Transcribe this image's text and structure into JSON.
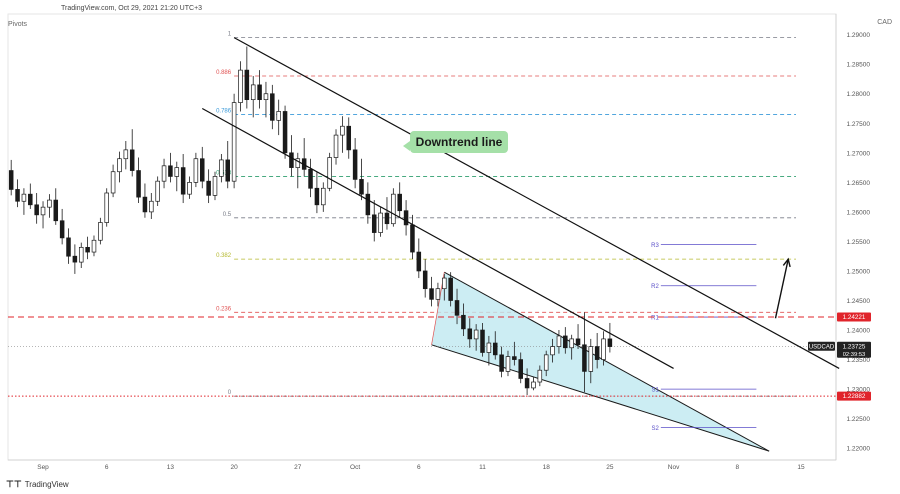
{
  "header": {
    "source": "TradingView.com, Oct 29, 2021 21:20 UTC+3",
    "indicator": "Pivots",
    "currency": "CAD",
    "footer_logo": "TradingView"
  },
  "annotation": {
    "text": "Downtrend line"
  },
  "chart_data": {
    "type": "candlestick",
    "symbol": "USDCAD",
    "last_price": 1.23725,
    "countdown": "02:39:53",
    "price_axis": {
      "ylim": [
        1.218,
        1.2935
      ],
      "ticks": [
        1.29,
        1.285,
        1.28,
        1.275,
        1.27,
        1.265,
        1.26,
        1.255,
        1.25,
        1.245,
        1.24,
        1.235,
        1.23,
        1.225,
        1.22
      ],
      "tick_labels": [
        "1.29000",
        "1.28500",
        "1.28000",
        "1.27500",
        "1.27000",
        "1.26500",
        "1.26000",
        "1.25500",
        "1.25000",
        "1.24500",
        "1.24000",
        "1.23500",
        "1.23000",
        "1.22500",
        "1.22000"
      ]
    },
    "time_axis": {
      "ticks": [
        {
          "label": "Sep",
          "bar": 5
        },
        {
          "label": "6",
          "bar": 15
        },
        {
          "label": "13",
          "bar": 25
        },
        {
          "label": "20",
          "bar": 35
        },
        {
          "label": "27",
          "bar": 45
        },
        {
          "label": "Oct",
          "bar": 54
        },
        {
          "label": "6",
          "bar": 64
        },
        {
          "label": "11",
          "bar": 74
        },
        {
          "label": "18",
          "bar": 84
        },
        {
          "label": "25",
          "bar": 94
        },
        {
          "label": "Nov",
          "bar": 104
        },
        {
          "label": "8",
          "bar": 114
        },
        {
          "label": "15",
          "bar": 124
        }
      ],
      "bars_total": 130
    },
    "ohlc": [
      [
        1.267,
        1.2688,
        1.2628,
        1.2638
      ],
      [
        1.2638,
        1.2655,
        1.2608,
        1.2618
      ],
      [
        1.2618,
        1.264,
        1.2595,
        1.263
      ],
      [
        1.263,
        1.2648,
        1.2605,
        1.2612
      ],
      [
        1.2612,
        1.2632,
        1.258,
        1.2595
      ],
      [
        1.2595,
        1.2618,
        1.2572,
        1.2608
      ],
      [
        1.2608,
        1.263,
        1.259,
        1.262
      ],
      [
        1.262,
        1.264,
        1.2578,
        1.2585
      ],
      [
        1.2585,
        1.2605,
        1.2545,
        1.2556
      ],
      [
        1.2556,
        1.2572,
        1.2512,
        1.2525
      ],
      [
        1.2525,
        1.2545,
        1.2495,
        1.2515
      ],
      [
        1.2515,
        1.2548,
        1.2505,
        1.254
      ],
      [
        1.254,
        1.2558,
        1.252,
        1.2532
      ],
      [
        1.2532,
        1.256,
        1.2525,
        1.2552
      ],
      [
        1.2552,
        1.259,
        1.2545,
        1.2582
      ],
      [
        1.2582,
        1.264,
        1.2575,
        1.2632
      ],
      [
        1.2632,
        1.268,
        1.2625,
        1.2668
      ],
      [
        1.2668,
        1.2702,
        1.265,
        1.269
      ],
      [
        1.269,
        1.272,
        1.2672,
        1.2705
      ],
      [
        1.2705,
        1.274,
        1.266,
        1.267
      ],
      [
        1.267,
        1.2692,
        1.2615,
        1.2625
      ],
      [
        1.2625,
        1.2648,
        1.259,
        1.26
      ],
      [
        1.26,
        1.2632,
        1.2588,
        1.2618
      ],
      [
        1.2618,
        1.266,
        1.261,
        1.2652
      ],
      [
        1.2652,
        1.269,
        1.264,
        1.2678
      ],
      [
        1.2678,
        1.27,
        1.265,
        1.266
      ],
      [
        1.266,
        1.2685,
        1.2635,
        1.2675
      ],
      [
        1.2675,
        1.2698,
        1.2615,
        1.263
      ],
      [
        1.263,
        1.266,
        1.2622,
        1.265
      ],
      [
        1.265,
        1.27,
        1.2642,
        1.269
      ],
      [
        1.269,
        1.271,
        1.264,
        1.2652
      ],
      [
        1.2652,
        1.2672,
        1.2615,
        1.2628
      ],
      [
        1.2628,
        1.2668,
        1.262,
        1.266
      ],
      [
        1.266,
        1.2698,
        1.265,
        1.2688
      ],
      [
        1.2688,
        1.272,
        1.264,
        1.2652
      ],
      [
        1.2652,
        1.28,
        1.264,
        1.2785
      ],
      [
        1.2785,
        1.2855,
        1.277,
        1.284
      ],
      [
        1.284,
        1.288,
        1.2775,
        1.279
      ],
      [
        1.279,
        1.283,
        1.276,
        1.2815
      ],
      [
        1.2815,
        1.284,
        1.2775,
        1.279
      ],
      [
        1.279,
        1.282,
        1.276,
        1.28
      ],
      [
        1.28,
        1.2815,
        1.274,
        1.2755
      ],
      [
        1.2755,
        1.279,
        1.273,
        1.277
      ],
      [
        1.277,
        1.278,
        1.269,
        1.27
      ],
      [
        1.27,
        1.273,
        1.266,
        1.2675
      ],
      [
        1.2675,
        1.27,
        1.264,
        1.269
      ],
      [
        1.269,
        1.2725,
        1.266,
        1.2672
      ],
      [
        1.2672,
        1.269,
        1.2625,
        1.264
      ],
      [
        1.264,
        1.2668,
        1.2598,
        1.2612
      ],
      [
        1.2612,
        1.265,
        1.26,
        1.264
      ],
      [
        1.264,
        1.27,
        1.2635,
        1.2692
      ],
      [
        1.2692,
        1.274,
        1.268,
        1.273
      ],
      [
        1.273,
        1.2762,
        1.27,
        1.2745
      ],
      [
        1.2745,
        1.276,
        1.269,
        1.2705
      ],
      [
        1.2705,
        1.2725,
        1.264,
        1.2655
      ],
      [
        1.2655,
        1.269,
        1.262,
        1.263
      ],
      [
        1.263,
        1.265,
        1.258,
        1.2595
      ],
      [
        1.2595,
        1.262,
        1.255,
        1.2565
      ],
      [
        1.2565,
        1.2608,
        1.2558,
        1.2598
      ],
      [
        1.2598,
        1.2625,
        1.257,
        1.258
      ],
      [
        1.258,
        1.264,
        1.2575,
        1.263
      ],
      [
        1.263,
        1.265,
        1.259,
        1.2602
      ],
      [
        1.2602,
        1.262,
        1.256,
        1.2578
      ],
      [
        1.2578,
        1.2595,
        1.252,
        1.2532
      ],
      [
        1.2532,
        1.2555,
        1.2488,
        1.25
      ],
      [
        1.25,
        1.252,
        1.2455,
        1.247
      ],
      [
        1.247,
        1.249,
        1.244,
        1.2452
      ],
      [
        1.2452,
        1.248,
        1.244,
        1.247
      ],
      [
        1.247,
        1.2495,
        1.245,
        1.2488
      ],
      [
        1.2488,
        1.2498,
        1.244,
        1.245
      ],
      [
        1.245,
        1.247,
        1.241,
        1.2425
      ],
      [
        1.2425,
        1.2445,
        1.239,
        1.2402
      ],
      [
        1.2402,
        1.242,
        1.237,
        1.2385
      ],
      [
        1.2385,
        1.241,
        1.2365,
        1.24
      ],
      [
        1.24,
        1.2412,
        1.2355,
        1.2362
      ],
      [
        1.2362,
        1.239,
        1.234,
        1.2378
      ],
      [
        1.2378,
        1.2398,
        1.235,
        1.2358
      ],
      [
        1.2358,
        1.2372,
        1.232,
        1.233
      ],
      [
        1.233,
        1.2365,
        1.2322,
        1.2355
      ],
      [
        1.2355,
        1.238,
        1.234,
        1.235
      ],
      [
        1.235,
        1.2362,
        1.231,
        1.2318
      ],
      [
        1.2318,
        1.2335,
        1.229,
        1.2302
      ],
      [
        1.2302,
        1.232,
        1.2298,
        1.2312
      ],
      [
        1.2312,
        1.234,
        1.2305,
        1.2332
      ],
      [
        1.2332,
        1.2365,
        1.2322,
        1.2358
      ],
      [
        1.2358,
        1.2385,
        1.2345,
        1.2372
      ],
      [
        1.2372,
        1.24,
        1.236,
        1.239
      ],
      [
        1.239,
        1.2405,
        1.236,
        1.237
      ],
      [
        1.237,
        1.2392,
        1.235,
        1.2385
      ],
      [
        1.2385,
        1.241,
        1.2368,
        1.2375
      ],
      [
        1.2375,
        1.243,
        1.2295,
        1.233
      ],
      [
        1.233,
        1.2385,
        1.231,
        1.2372
      ],
      [
        1.2372,
        1.2395,
        1.2335,
        1.235
      ],
      [
        1.235,
        1.2398,
        1.234,
        1.2385
      ],
      [
        1.2385,
        1.2412,
        1.2362,
        1.2372
      ]
    ],
    "fibonacci": {
      "levels": [
        {
          "label": "1",
          "price": 1.2895,
          "color": "#787b86"
        },
        {
          "label": "0.886",
          "price": 1.283,
          "color": "#e05252"
        },
        {
          "label": "0.786",
          "price": 1.2765,
          "color": "#3a9ad9"
        },
        {
          "label": "0.618",
          "price": 1.266,
          "color": "#2f9e6e"
        },
        {
          "label": "0.5",
          "price": 1.259,
          "color": "#787b86"
        },
        {
          "label": "0.382",
          "price": 1.252,
          "color": "#b5b82e"
        },
        {
          "label": "0.236",
          "price": 1.243,
          "color": "#e05252"
        },
        {
          "label": "0",
          "price": 1.2288,
          "color": "#787b86"
        }
      ],
      "from_bar": 35,
      "to_bar": 130
    },
    "pivot_levels": [
      {
        "label": "R3",
        "price": 1.2545
      },
      {
        "label": "R2",
        "price": 1.2475
      },
      {
        "label": "R1",
        "price": 1.2422
      },
      {
        "label": "S1",
        "price": 1.23
      },
      {
        "label": "S2",
        "price": 1.2235
      }
    ],
    "pivot_from_bar": 102,
    "pivot_to_bar": 117,
    "horizontal_lines": [
      {
        "price": 1.24221,
        "label": "1.24221",
        "color": "#e0242b",
        "style": "dashed"
      },
      {
        "price": 1.22882,
        "label": "1.22882",
        "color": "#e0242b",
        "style": "dotted"
      }
    ],
    "downtrend_channel": {
      "upper": {
        "from_bar": 35,
        "from_price": 1.2895,
        "to_bar": 130,
        "to_price": 1.2335
      },
      "lower": {
        "from_bar": 30,
        "from_price": 1.2775,
        "to_bar": 104,
        "to_price": 1.2335
      }
    },
    "falling_wedge": {
      "upper": {
        "from_bar": 68,
        "from_price": 1.2498,
        "to_bar": 119,
        "to_price": 1.2195
      },
      "lower": {
        "from_bar": 66,
        "from_price": 1.2375,
        "to_bar": 119,
        "to_price": 1.2195
      },
      "fill": "#bfe9f0"
    },
    "breakout_arrow": {
      "from_bar": 120,
      "from_price": 1.242,
      "to_bar": 122,
      "to_price": 1.252
    }
  }
}
